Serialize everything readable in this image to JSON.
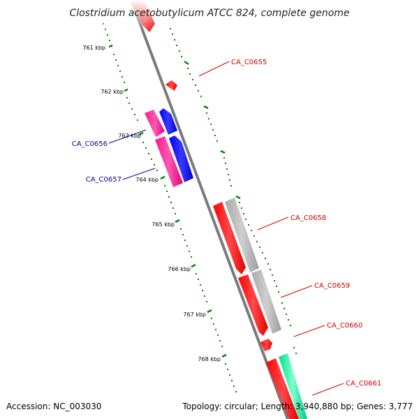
{
  "title": "Clostridium acetobutylicum ATCC 824, complete genome",
  "footer": {
    "accession": "Accession: NC_003030",
    "topology": "Topology: circular; Length: 3,940,880 bp; Genes: 3,777"
  },
  "colors": {
    "backbone": "#808080",
    "tick": "#008000",
    "gene_red": "#ff0000",
    "gene_blue": "#0000ff",
    "gene_magenta": "#ff1493",
    "gene_gray": "#b0b0b0",
    "gene_teal": "#20e0a0",
    "label_red": "#cc0000",
    "label_blue": "#000099"
  },
  "scale_labels": [
    "761 kbp",
    "762 kbp",
    "763 kbp",
    "764 kbp",
    "765 kbp",
    "766 kbp",
    "767 kbp",
    "768 kbp"
  ],
  "gene_labels": [
    {
      "id": "CA_C0655",
      "color": "label_red"
    },
    {
      "id": "CA_C0656",
      "color": "label_blue"
    },
    {
      "id": "CA_C0657",
      "color": "label_blue"
    },
    {
      "id": "CA_C0658",
      "color": "label_red"
    },
    {
      "id": "CA_C0659",
      "color": "label_red"
    },
    {
      "id": "CA_C0660",
      "color": "label_red"
    },
    {
      "id": "CA_C0661",
      "color": "label_red"
    }
  ]
}
